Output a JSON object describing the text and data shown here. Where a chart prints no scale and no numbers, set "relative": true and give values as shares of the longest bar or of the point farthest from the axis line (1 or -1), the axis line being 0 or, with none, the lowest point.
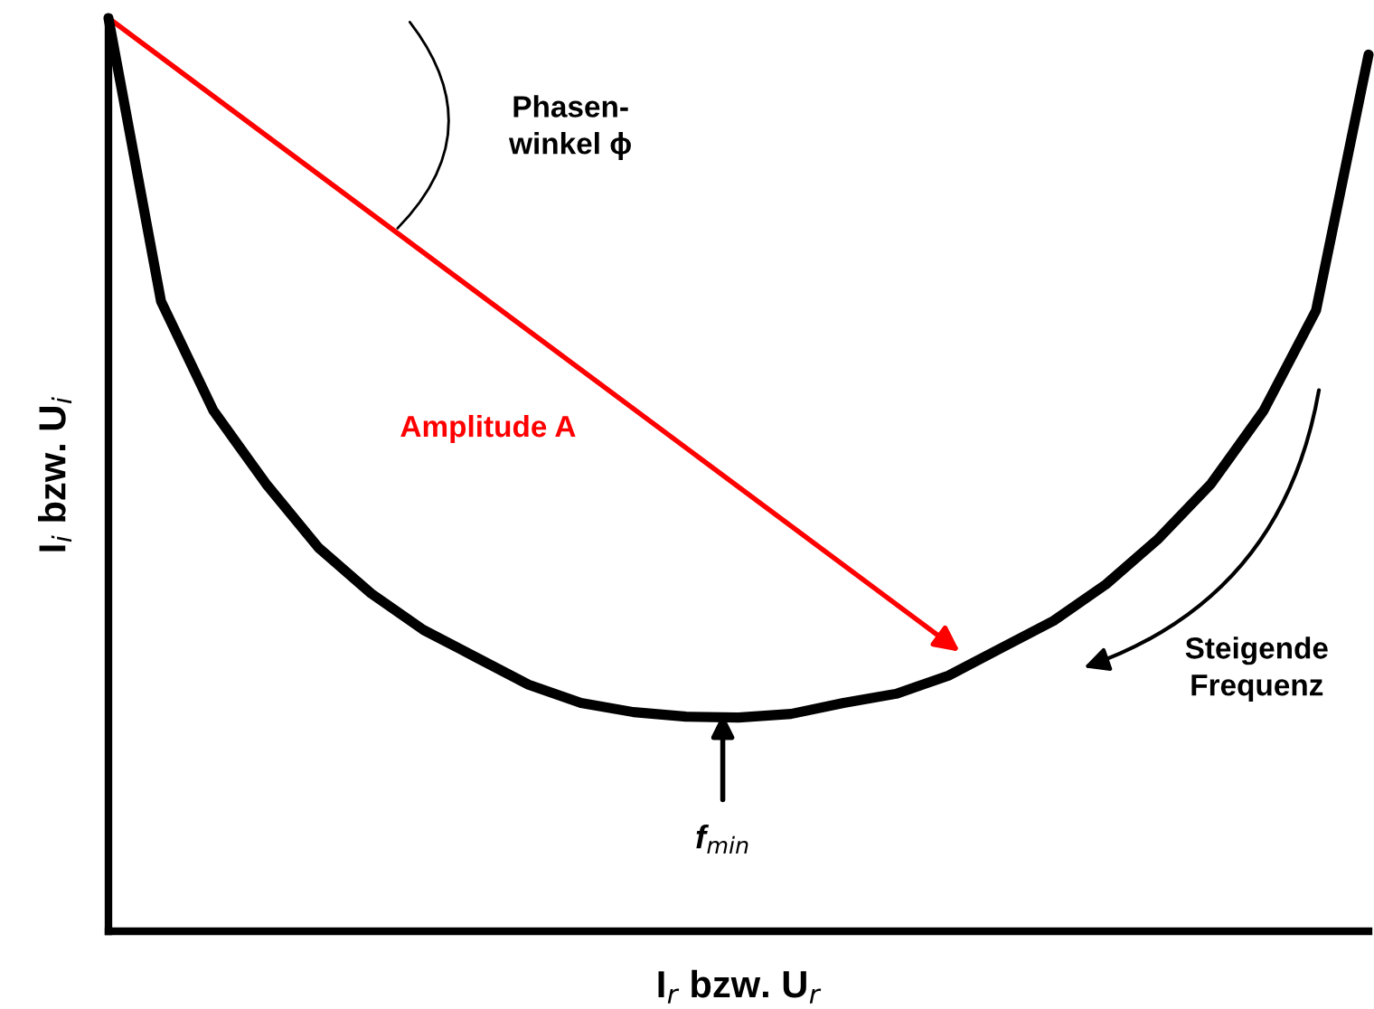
{
  "chart_data": {
    "type": "line",
    "relative": true,
    "color": "#000000",
    "xlabel": "I$_{r}$ bzw. U$_{r}$",
    "ylabel": "I$_{i}$ bzw. U$_{i}$",
    "categories": [
      null,
      null,
      null,
      null,
      null,
      null,
      null,
      null,
      null,
      null,
      null,
      null,
      null,
      null,
      null,
      null,
      null,
      null,
      null,
      null,
      null,
      null,
      null,
      null,
      null
    ],
    "values": [
      1,
      0.69,
      0.57,
      0.49,
      0.42,
      0.37,
      0.33,
      0.3,
      0.27,
      0.25,
      0.24,
      0.235,
      0.234,
      0.238,
      0.25,
      0.26,
      0.28,
      0.31,
      0.34,
      0.38,
      0.43,
      0.49,
      0.57,
      0.68,
      0.96
    ],
    "annotations": [
      "Phasen-\nwinkel ϕ",
      "Amplitude A",
      "Steigende\nFrequenz",
      "f$_{min}$"
    ]
  }
}
